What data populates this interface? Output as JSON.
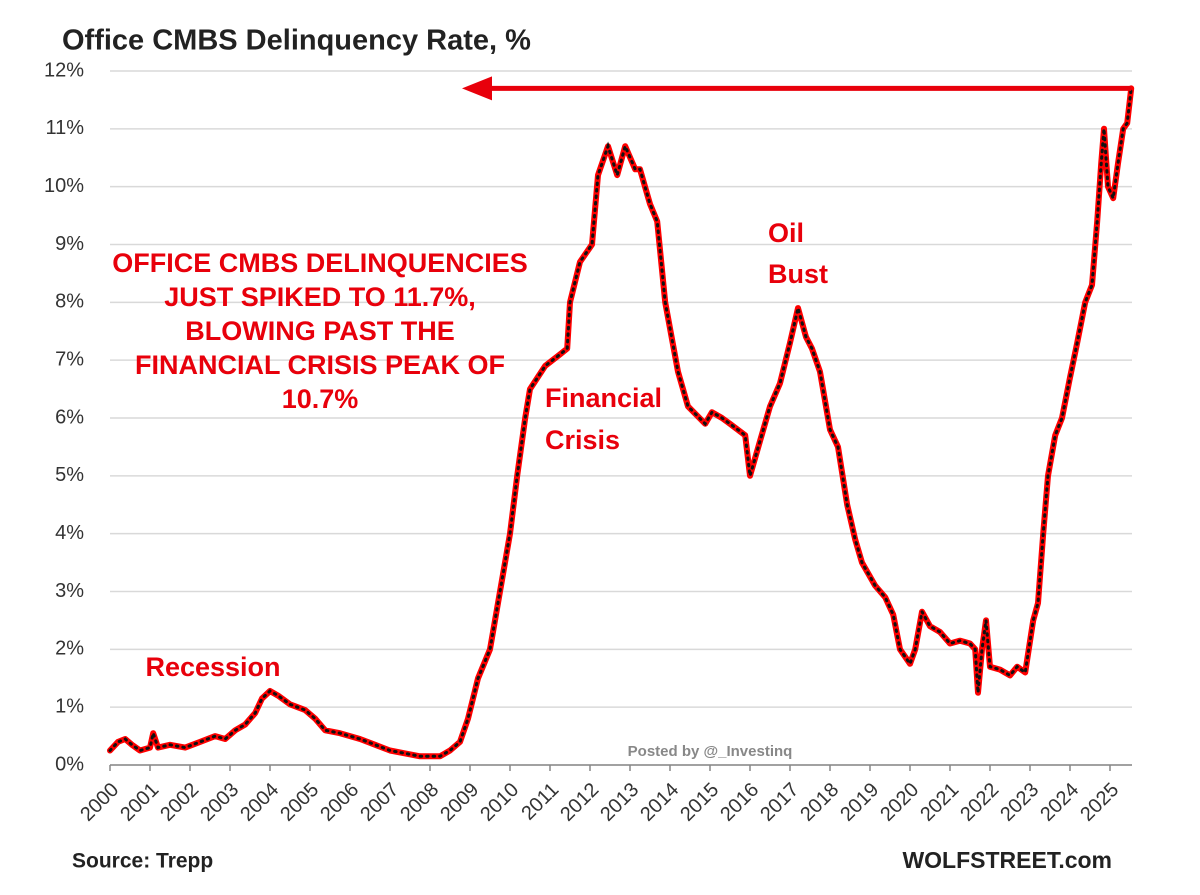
{
  "chart_data": {
    "type": "line",
    "title": "Office CMBS Delinquency Rate, %",
    "x": [
      2000.0,
      2000.2,
      2000.38,
      2000.55,
      2000.75,
      2001.0,
      2001.08,
      2001.2,
      2001.5,
      2001.88,
      2002.25,
      2002.63,
      2002.88,
      2003.13,
      2003.38,
      2003.63,
      2003.8,
      2004.0,
      2004.2,
      2004.5,
      2004.88,
      2005.13,
      2005.38,
      2005.75,
      2006.0,
      2006.25,
      2006.63,
      2007.0,
      2007.38,
      2007.75,
      2008.25,
      2008.5,
      2008.75,
      2008.95,
      2009.2,
      2009.5,
      2009.75,
      2010.0,
      2010.18,
      2010.38,
      2010.5,
      2010.88,
      2011.25,
      2011.43,
      2011.5,
      2011.75,
      2012.05,
      2012.2,
      2012.45,
      2012.68,
      2012.88,
      2013.13,
      2013.25,
      2013.5,
      2013.68,
      2013.88,
      2014.2,
      2014.45,
      2014.88,
      2015.05,
      2015.3,
      2015.5,
      2015.88,
      2016.0,
      2016.25,
      2016.5,
      2016.75,
      2017.0,
      2017.2,
      2017.4,
      2017.55,
      2017.75,
      2018.0,
      2018.2,
      2018.43,
      2018.63,
      2018.8,
      2019.13,
      2019.38,
      2019.58,
      2019.75,
      2020.0,
      2020.13,
      2020.3,
      2020.5,
      2020.75,
      2021.0,
      2021.25,
      2021.5,
      2021.63,
      2021.7,
      2021.8,
      2021.9,
      2022.0,
      2022.25,
      2022.5,
      2022.68,
      2022.88,
      2023.08,
      2023.2,
      2023.33,
      2023.45,
      2023.63,
      2023.8,
      2024.0,
      2024.18,
      2024.38,
      2024.55,
      2024.68,
      2024.78,
      2024.85,
      2024.95,
      2025.08,
      2025.2,
      2025.33,
      2025.43,
      2025.53
    ],
    "series": [
      {
        "name": "Office CMBS Delinquency Rate",
        "color": "#ff0000",
        "values": [
          0.25,
          0.4,
          0.45,
          0.35,
          0.25,
          0.3,
          0.55,
          0.3,
          0.35,
          0.3,
          0.4,
          0.5,
          0.45,
          0.6,
          0.7,
          0.9,
          1.15,
          1.28,
          1.2,
          1.05,
          0.95,
          0.8,
          0.6,
          0.55,
          0.5,
          0.45,
          0.35,
          0.25,
          0.2,
          0.15,
          0.15,
          0.25,
          0.4,
          0.8,
          1.5,
          2.0,
          3.0,
          4.0,
          5.0,
          6.0,
          6.5,
          6.9,
          7.1,
          7.2,
          8.0,
          8.7,
          9.0,
          10.2,
          10.7,
          10.2,
          10.7,
          10.3,
          10.3,
          9.7,
          9.4,
          8.0,
          6.8,
          6.2,
          5.9,
          6.1,
          6.0,
          5.9,
          5.7,
          5.0,
          5.6,
          6.2,
          6.6,
          7.3,
          7.9,
          7.4,
          7.2,
          6.8,
          5.8,
          5.5,
          4.5,
          3.9,
          3.5,
          3.1,
          2.9,
          2.6,
          2.0,
          1.75,
          2.0,
          2.65,
          2.4,
          2.3,
          2.1,
          2.15,
          2.1,
          2.0,
          1.25,
          2.0,
          2.5,
          1.7,
          1.65,
          1.55,
          1.7,
          1.6,
          2.5,
          2.8,
          4.0,
          5.0,
          5.7,
          6.0,
          6.7,
          7.3,
          8.0,
          8.3,
          9.4,
          10.4,
          11.0,
          10.0,
          9.8,
          10.4,
          11.0,
          11.1,
          11.7
        ]
      }
    ],
    "xlim": [
      2000,
      2025.55
    ],
    "xticks": [
      2000,
      2001,
      2002,
      2003,
      2004,
      2005,
      2006,
      2007,
      2008,
      2009,
      2010,
      2011,
      2012,
      2013,
      2014,
      2015,
      2016,
      2017,
      2018,
      2019,
      2020,
      2021,
      2022,
      2023,
      2024,
      2025
    ],
    "ylim": [
      0,
      12
    ],
    "yticks": [
      {
        "value": 0,
        "label": "0%"
      },
      {
        "value": 1,
        "label": "1%"
      },
      {
        "value": 2,
        "label": "2%"
      },
      {
        "value": 3,
        "label": "3%"
      },
      {
        "value": 4,
        "label": "4%"
      },
      {
        "value": 5,
        "label": "5%"
      },
      {
        "value": 6,
        "label": "6%"
      },
      {
        "value": 7,
        "label": "7%"
      },
      {
        "value": 8,
        "label": "8%"
      },
      {
        "value": 9,
        "label": "9%"
      },
      {
        "value": 10,
        "label": "10%"
      },
      {
        "value": 11,
        "label": "11%"
      },
      {
        "value": 12,
        "label": "12%"
      }
    ],
    "grid": true,
    "annotations": {
      "headline": [
        "OFFICE CMBS DELINQUENCIES",
        "JUST SPIKED TO 11.7%,",
        "BLOWING PAST THE",
        "FINANCIAL CRISIS PEAK OF",
        "10.7%"
      ],
      "recession": "Recession",
      "financial_crisis": [
        "Financial",
        "Crisis"
      ],
      "oil_bust": [
        "Oil",
        "Bust"
      ],
      "posted_by": "Posted by @_Investinq"
    },
    "source": "Source: Trepp",
    "brand": "WOLFSTREET.com"
  }
}
